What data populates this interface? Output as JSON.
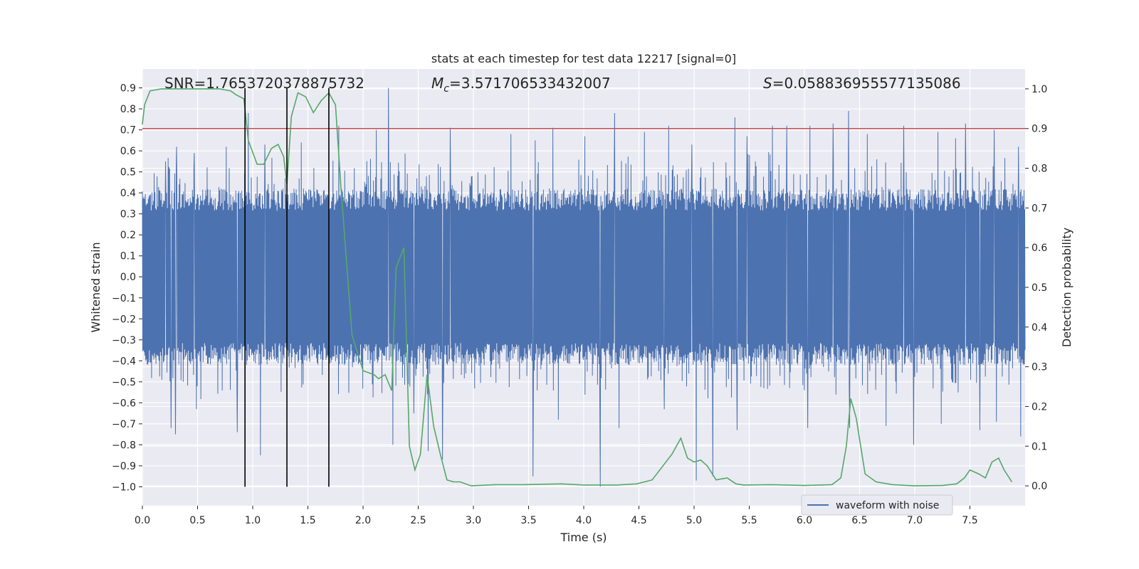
{
  "chart_data": {
    "type": "line",
    "title": "stats at each timestep for test data 12217 [signal=0]",
    "xlabel": "Time (s)",
    "ylabel": "Whitened strain",
    "y2label": "Detection probability",
    "xlim": [
      0.0,
      8.0
    ],
    "ylim": [
      -1.09,
      0.99
    ],
    "y2lim": [
      -0.05,
      1.05
    ],
    "xticks": [
      0.0,
      0.5,
      1.0,
      1.5,
      2.0,
      2.5,
      3.0,
      3.5,
      4.0,
      4.5,
      5.0,
      5.5,
      6.0,
      6.5,
      7.0,
      7.5
    ],
    "xtick_labels": [
      "0.0",
      "0.5",
      "1.0",
      "1.5",
      "2.0",
      "2.5",
      "3.0",
      "3.5",
      "4.0",
      "4.5",
      "5.0",
      "5.5",
      "6.0",
      "6.5",
      "7.0",
      "7.5"
    ],
    "yticks": [
      0.9,
      0.8,
      0.7,
      0.6,
      0.5,
      0.4,
      0.3,
      0.2,
      0.1,
      0.0,
      -0.1,
      -0.2,
      -0.3,
      -0.4,
      -0.5,
      -0.6,
      -0.7,
      -0.8,
      -0.9,
      -1.0
    ],
    "ytick_labels": [
      "0.9",
      "0.8",
      "0.7",
      "0.6",
      "0.5",
      "0.4",
      "0.3",
      "0.2",
      "0.1",
      "0.0",
      "−0.1",
      "−0.2",
      "−0.3",
      "−0.4",
      "−0.5",
      "−0.6",
      "−0.7",
      "−0.8",
      "−0.9",
      "−1.0"
    ],
    "y2ticks": [
      1.0,
      0.9,
      0.8,
      0.7,
      0.6,
      0.5,
      0.4,
      0.3,
      0.2,
      0.1,
      0.0
    ],
    "y2tick_labels": [
      "1.0",
      "0.9",
      "0.8",
      "0.7",
      "0.6",
      "0.5",
      "0.4",
      "0.3",
      "0.2",
      "0.1",
      "0.0"
    ],
    "grid": true,
    "legend": {
      "position": "bottom-right",
      "entries": [
        {
          "label": "waveform with noise",
          "color": "#4c72b0"
        }
      ]
    },
    "annotations": {
      "snr": "SNR=1.7653720378875732",
      "mc_symbol": "M",
      "mc_sub": "c",
      "mc_value": "=3.571706533432007",
      "s_symbol": "S",
      "s_value": "=0.058836955577135086"
    },
    "threshold": {
      "value": 0.9,
      "axis": "y2",
      "color": "#c44e52"
    },
    "vlines": {
      "x": [
        0.93,
        1.31,
        1.69
      ],
      "y_from": -1.0,
      "y_to": 0.9,
      "color": "#000000"
    },
    "waveform": {
      "name": "waveform with noise",
      "color": "#4c72b0",
      "note": "whitened noise; dense band about ±0.42 with sporadic peaks",
      "band": 0.42,
      "peaks": [
        [
          0.21,
          0.55
        ],
        [
          0.31,
          0.62
        ],
        [
          0.47,
          0.59
        ],
        [
          0.76,
          0.62
        ],
        [
          0.86,
          0.73
        ],
        [
          0.96,
          0.78
        ],
        [
          1.11,
          0.63
        ],
        [
          1.44,
          0.64
        ],
        [
          1.78,
          0.72
        ],
        [
          2.12,
          0.7
        ],
        [
          2.23,
          0.9
        ],
        [
          2.79,
          0.71
        ],
        [
          3.34,
          0.68
        ],
        [
          3.56,
          0.65
        ],
        [
          3.72,
          0.71
        ],
        [
          4.01,
          0.67
        ],
        [
          4.15,
          0.8
        ],
        [
          4.28,
          0.78
        ],
        [
          4.55,
          0.69
        ],
        [
          4.77,
          0.72
        ],
        [
          4.98,
          0.63
        ],
        [
          5.37,
          0.76
        ],
        [
          5.48,
          0.67
        ],
        [
          5.71,
          0.72
        ],
        [
          5.84,
          0.72
        ],
        [
          6.05,
          0.72
        ],
        [
          6.26,
          0.73
        ],
        [
          6.4,
          0.79
        ],
        [
          6.57,
          0.68
        ],
        [
          6.9,
          0.72
        ],
        [
          7.21,
          0.69
        ],
        [
          7.37,
          0.66
        ],
        [
          7.46,
          0.73
        ],
        [
          7.72,
          0.7
        ],
        [
          7.94,
          0.62
        ]
      ],
      "troughs": [
        [
          0.26,
          -0.72
        ],
        [
          0.3,
          -0.75
        ],
        [
          0.49,
          -0.63
        ],
        [
          0.86,
          -0.74
        ],
        [
          0.93,
          -0.79
        ],
        [
          1.07,
          -0.85
        ],
        [
          2.27,
          -0.8
        ],
        [
          2.46,
          -0.65
        ],
        [
          2.59,
          -0.83
        ],
        [
          2.72,
          -0.87
        ],
        [
          3.54,
          -0.95
        ],
        [
          3.77,
          -0.68
        ],
        [
          4.15,
          -1.0
        ],
        [
          4.32,
          -0.72
        ],
        [
          4.73,
          -0.63
        ],
        [
          5.02,
          -0.97
        ],
        [
          5.17,
          -0.95
        ],
        [
          5.39,
          -0.73
        ],
        [
          6.03,
          -0.72
        ],
        [
          6.41,
          -0.72
        ],
        [
          6.74,
          -0.71
        ],
        [
          6.99,
          -0.8
        ],
        [
          7.24,
          -0.7
        ],
        [
          7.59,
          -0.73
        ],
        [
          7.74,
          -0.69
        ],
        [
          7.96,
          -0.76
        ]
      ]
    },
    "detection_probability": {
      "name": "Detection probability",
      "color": "#55a868",
      "x": [
        0.0,
        0.02,
        0.07,
        0.17,
        0.3,
        0.5,
        0.7,
        0.8,
        0.85,
        0.92,
        0.96,
        1.04,
        1.1,
        1.17,
        1.23,
        1.28,
        1.31,
        1.35,
        1.41,
        1.48,
        1.55,
        1.62,
        1.69,
        1.75,
        1.8,
        1.9,
        2.0,
        2.1,
        2.14,
        2.2,
        2.26,
        2.3,
        2.37,
        2.42,
        2.47,
        2.52,
        2.58,
        2.64,
        2.7,
        2.76,
        2.82,
        2.88,
        2.98,
        3.2,
        3.45,
        3.8,
        4.0,
        4.3,
        4.48,
        4.55,
        4.62,
        4.8,
        4.88,
        4.94,
        5.0,
        5.06,
        5.12,
        5.2,
        5.3,
        5.38,
        5.45,
        5.7,
        6.0,
        6.25,
        6.33,
        6.38,
        6.42,
        6.47,
        6.55,
        6.65,
        6.8,
        7.0,
        7.25,
        7.38,
        7.45,
        7.5,
        7.58,
        7.64,
        7.7,
        7.76,
        7.81,
        7.88
      ],
      "values": [
        0.91,
        0.96,
        0.995,
        1.0,
        1.0,
        1.0,
        1.0,
        0.995,
        0.985,
        0.975,
        0.87,
        0.81,
        0.81,
        0.85,
        0.86,
        0.83,
        0.76,
        0.93,
        0.99,
        0.98,
        0.94,
        0.97,
        0.99,
        0.96,
        0.75,
        0.38,
        0.29,
        0.28,
        0.27,
        0.28,
        0.24,
        0.55,
        0.6,
        0.1,
        0.04,
        0.08,
        0.28,
        0.15,
        0.08,
        0.015,
        0.01,
        0.01,
        0.0,
        0.003,
        0.003,
        0.005,
        0.002,
        0.002,
        0.005,
        0.01,
        0.015,
        0.08,
        0.12,
        0.07,
        0.06,
        0.065,
        0.05,
        0.015,
        0.02,
        0.005,
        0.002,
        0.003,
        0.001,
        0.003,
        0.02,
        0.1,
        0.22,
        0.17,
        0.03,
        0.01,
        0.003,
        0.0,
        0.001,
        0.005,
        0.02,
        0.04,
        0.03,
        0.02,
        0.06,
        0.07,
        0.04,
        0.01
      ]
    }
  }
}
